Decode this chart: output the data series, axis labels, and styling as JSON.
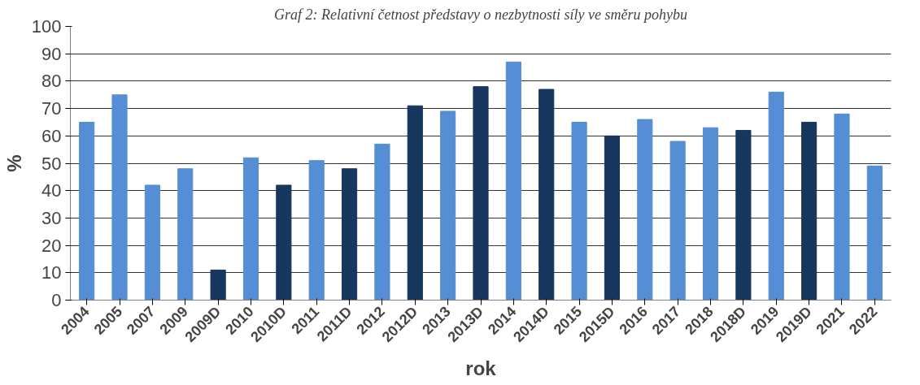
{
  "chart_data": {
    "type": "bar",
    "title": "Graf 2: Relativní četnost představy o nezbytnosti síly ve směru pohybu",
    "xlabel": "rok",
    "ylabel": "%",
    "categories": [
      "2004",
      "2005",
      "2007",
      "2009",
      "2009D",
      "2010",
      "2010D",
      "2011",
      "2011D",
      "2012",
      "2012D",
      "2013",
      "2013D",
      "2014",
      "2014D",
      "2015",
      "2015D",
      "2016",
      "2017",
      "2018",
      "2018D",
      "2019",
      "2019D",
      "2021",
      "2022"
    ],
    "values": [
      65,
      75,
      42,
      48,
      11,
      52,
      42,
      51,
      48,
      57,
      71,
      69,
      78,
      87,
      77,
      65,
      60,
      66,
      58,
      63,
      62,
      76,
      65,
      68,
      49
    ],
    "colors": [
      "#558ed5",
      "#558ed5",
      "#558ed5",
      "#558ed5",
      "#17375e",
      "#558ed5",
      "#17375e",
      "#558ed5",
      "#17375e",
      "#558ed5",
      "#17375e",
      "#558ed5",
      "#17375e",
      "#558ed5",
      "#17375e",
      "#558ed5",
      "#17375e",
      "#558ed5",
      "#558ed5",
      "#558ed5",
      "#17375e",
      "#558ed5",
      "#17375e",
      "#558ed5",
      "#558ed5"
    ],
    "ylim": [
      0,
      100
    ],
    "yticks": [
      0,
      10,
      20,
      30,
      40,
      50,
      60,
      70,
      80,
      90,
      100
    ],
    "grid": "y"
  }
}
